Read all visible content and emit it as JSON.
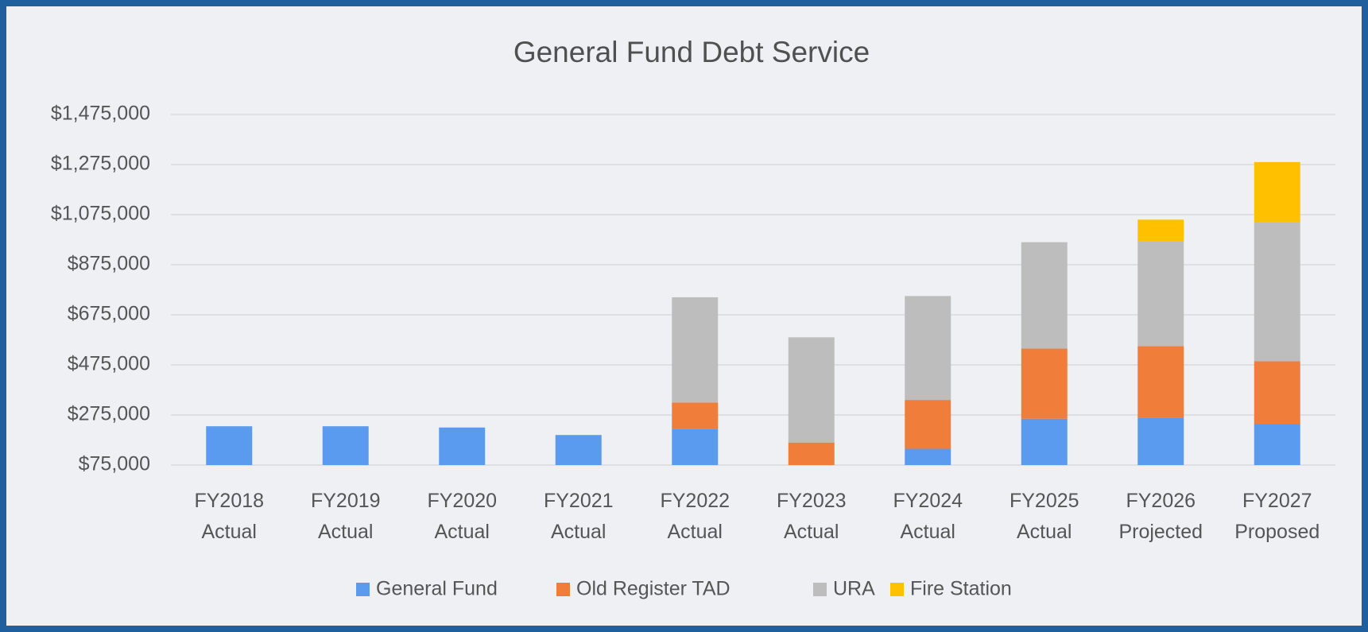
{
  "chart_data": {
    "type": "stacked_bar",
    "title": "General Fund Debt Service",
    "categories": [
      "FY2018 Actual",
      "FY2019 Actual",
      "FY2020 Actual",
      "FY2021 Actual",
      "FY2022 Actual",
      "FY2023 Actual",
      "FY2024 Actual",
      "FY2025 Actual",
      "FY2026 Projected",
      "FY2027 Proposed"
    ],
    "series": [
      {
        "name": "General Fund",
        "color": "#5b9bef",
        "values": [
          230000,
          230000,
          225000,
          195000,
          220000,
          0,
          140000,
          260000,
          265000,
          240000
        ]
      },
      {
        "name": "Old Register TAD",
        "color": "#f07d3a",
        "values": [
          0,
          0,
          0,
          0,
          105000,
          165000,
          195000,
          280000,
          285000,
          250000
        ]
      },
      {
        "name": "URA",
        "color": "#bdbdbd",
        "values": [
          0,
          0,
          0,
          0,
          420000,
          420000,
          415000,
          425000,
          420000,
          555000
        ]
      },
      {
        "name": "Fire Station",
        "color": "#ffc000",
        "values": [
          0,
          0,
          0,
          0,
          0,
          0,
          0,
          0,
          85000,
          240000
        ]
      }
    ],
    "ylim": [
      75000,
      1475000
    ],
    "yticks": [
      {
        "value": 75000,
        "label": "$75,000"
      },
      {
        "value": 275000,
        "label": "$275,000"
      },
      {
        "value": 475000,
        "label": "$475,000"
      },
      {
        "value": 675000,
        "label": "$675,000"
      },
      {
        "value": 875000,
        "label": "$875,000"
      },
      {
        "value": 1075000,
        "label": "$1,075,000"
      },
      {
        "value": 1275000,
        "label": "$1,275,000"
      },
      {
        "value": 1475000,
        "label": "$1,475,000"
      }
    ],
    "grid": true,
    "legend": "bottom"
  }
}
